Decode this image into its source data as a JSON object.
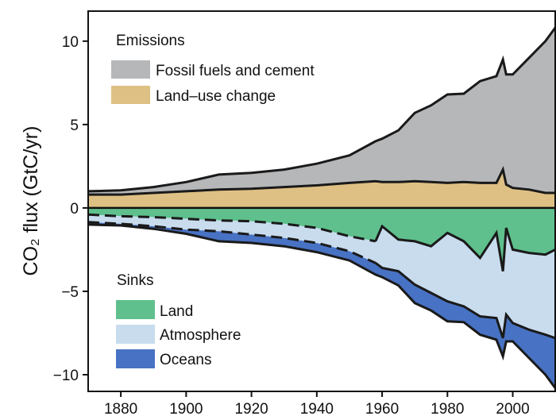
{
  "chart_data": {
    "type": "area",
    "ylabel": "CO₂ flux (GtC/yr)",
    "xlim": [
      1870,
      2013
    ],
    "ylim": [
      -11,
      11.8
    ],
    "x_ticks": [
      1880,
      1900,
      1920,
      1940,
      1960,
      1980,
      2000
    ],
    "x_tick_labels": [
      "1880",
      "1900",
      "1920",
      "1940",
      "1960",
      "1980",
      "2000"
    ],
    "y_ticks": [
      10,
      5,
      0,
      -5,
      -10
    ],
    "y_tick_labels": [
      "10",
      "5",
      "0",
      "−5",
      "−10"
    ],
    "grid": false,
    "colors": {
      "fossil": "#b5b7b9",
      "land_use": "#dfc084",
      "land_sink": "#5fc08d",
      "atmosphere": "#c8dcee",
      "oceans": "#4872c3",
      "outline": "#1a1a1a"
    },
    "legends": {
      "emissions": {
        "heading": "Emissions",
        "items": [
          {
            "label": "Fossil fuels and cement",
            "color": "#b5b7b9"
          },
          {
            "label": "Land–use change",
            "color": "#dfc084"
          }
        ]
      },
      "sinks": {
        "heading": "Sinks",
        "items": [
          {
            "label": "Land",
            "color": "#5fc08d"
          },
          {
            "label": "Atmosphere",
            "color": "#c8dcee"
          },
          {
            "label": "Oceans",
            "color": "#4872c3"
          }
        ]
      }
    },
    "x": [
      1870,
      1880,
      1890,
      1900,
      1910,
      1920,
      1930,
      1940,
      1950,
      1958,
      1960,
      1965,
      1970,
      1975,
      1980,
      1985,
      1990,
      1995,
      1997,
      1998,
      2000,
      2005,
      2010,
      2013
    ],
    "emissions_series": [
      {
        "name": "Land–use change",
        "values": [
          0.8,
          0.8,
          0.9,
          1.0,
          1.1,
          1.15,
          1.25,
          1.35,
          1.5,
          1.6,
          1.55,
          1.55,
          1.6,
          1.55,
          1.5,
          1.55,
          1.5,
          1.5,
          2.3,
          1.4,
          1.2,
          1.1,
          0.9,
          0.9
        ]
      },
      {
        "name": "Fossil fuels and cement",
        "values": [
          0.2,
          0.25,
          0.35,
          0.55,
          0.9,
          0.95,
          1.05,
          1.3,
          1.65,
          2.4,
          2.6,
          3.1,
          4.1,
          4.6,
          5.3,
          5.3,
          6.1,
          6.4,
          6.6,
          6.6,
          6.8,
          7.9,
          9.1,
          9.9
        ]
      }
    ],
    "total_emissions": [
      1.0,
      1.05,
      1.25,
      1.55,
      2.0,
      2.1,
      2.3,
      2.65,
      3.15,
      4.0,
      4.15,
      4.65,
      5.7,
      6.15,
      6.8,
      6.85,
      7.6,
      7.9,
      8.9,
      8.0,
      8.0,
      9.0,
      10.0,
      10.8
    ],
    "sink_boundaries": {
      "land_sink_lower": [
        -0.4,
        -0.5,
        -0.55,
        -0.65,
        -0.75,
        -0.8,
        -0.95,
        -1.2,
        -1.7,
        -2.0,
        -1.1,
        -1.9,
        -2.0,
        -2.3,
        -1.5,
        -2.0,
        -3.0,
        -1.5,
        -3.8,
        -1.2,
        -2.5,
        -2.7,
        -2.8,
        -2.5
      ],
      "atmosphere_lower": [
        -0.85,
        -0.95,
        -1.1,
        -1.3,
        -1.4,
        -1.6,
        -1.8,
        -2.1,
        -2.6,
        -3.3,
        -3.6,
        -3.8,
        -4.6,
        -5.1,
        -5.6,
        -5.9,
        -6.5,
        -6.6,
        -7.8,
        -6.4,
        -6.9,
        -7.3,
        -7.6,
        -7.8
      ],
      "oceans_lower": [
        -1.0,
        -1.05,
        -1.25,
        -1.55,
        -2.0,
        -2.1,
        -2.3,
        -2.65,
        -3.15,
        -4.0,
        -4.15,
        -4.65,
        -5.7,
        -6.15,
        -6.8,
        -6.85,
        -7.6,
        -7.9,
        -8.9,
        -8.0,
        -8.0,
        -9.0,
        -10.0,
        -10.8
      ]
    }
  }
}
